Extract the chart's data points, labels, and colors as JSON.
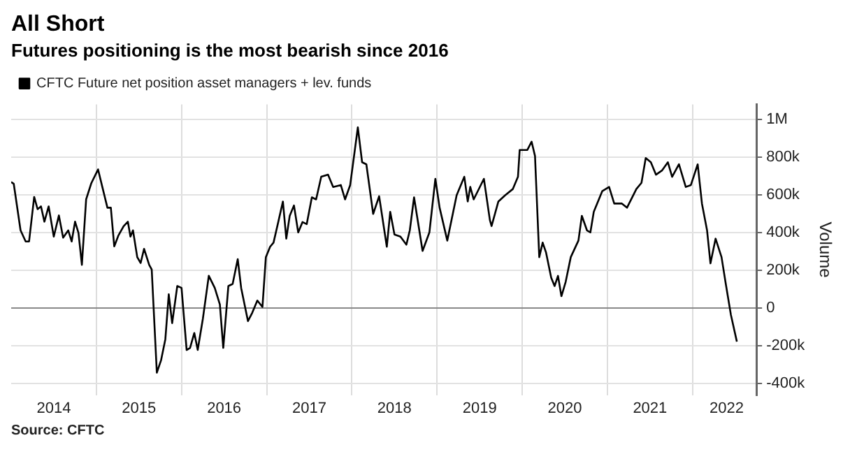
{
  "chart_data": {
    "type": "line",
    "title": "All Short",
    "subtitle": "Futures positioning is the most bearish since 2016",
    "ylabel": "Volume",
    "annotations": [
      "Source: CFTC"
    ],
    "series": [
      {
        "name": "CFTC Future net position asset managers + lev. funds",
        "color": "#000000",
        "x": [
          2014.0,
          2014.03,
          2014.11,
          2014.17,
          2014.21,
          2014.27,
          2014.31,
          2014.35,
          2014.39,
          2014.44,
          2014.5,
          2014.56,
          2014.61,
          2014.67,
          2014.71,
          2014.75,
          2014.79,
          2014.83,
          2014.88,
          2014.94,
          2015.02,
          2015.07,
          2015.13,
          2015.17,
          2015.21,
          2015.26,
          2015.32,
          2015.37,
          2015.4,
          2015.43,
          2015.48,
          2015.52,
          2015.56,
          2015.62,
          2015.65,
          2015.71,
          2015.76,
          2015.81,
          2015.85,
          2015.89,
          2015.95,
          2016.0,
          2016.06,
          2016.1,
          2016.15,
          2016.19,
          2016.25,
          2016.32,
          2016.39,
          2016.45,
          2016.49,
          2016.55,
          2016.6,
          2016.66,
          2016.7,
          2016.78,
          2016.83,
          2016.89,
          2016.95,
          2016.99,
          2017.04,
          2017.08,
          2017.13,
          2017.19,
          2017.23,
          2017.27,
          2017.32,
          2017.37,
          2017.42,
          2017.47,
          2017.53,
          2017.58,
          2017.64,
          2017.72,
          2017.78,
          2017.87,
          2017.92,
          2017.98,
          2018.07,
          2018.12,
          2018.17,
          2018.25,
          2018.32,
          2018.41,
          2018.45,
          2018.5,
          2018.57,
          2018.64,
          2018.68,
          2018.73,
          2018.83,
          2018.91,
          2018.98,
          2019.03,
          2019.12,
          2019.23,
          2019.32,
          2019.36,
          2019.39,
          2019.43,
          2019.55,
          2019.62,
          2019.64,
          2019.72,
          2019.8,
          2019.89,
          2019.95,
          2019.97,
          2020.06,
          2020.11,
          2020.15,
          2020.2,
          2020.24,
          2020.28,
          2020.34,
          2020.38,
          2020.42,
          2020.46,
          2020.51,
          2020.57,
          2020.66,
          2020.7,
          2020.76,
          2020.8,
          2020.84,
          2020.94,
          2021.02,
          2021.08,
          2021.17,
          2021.23,
          2021.34,
          2021.4,
          2021.45,
          2021.51,
          2021.57,
          2021.64,
          2021.71,
          2021.76,
          2021.84,
          2021.92,
          2021.98,
          2022.06,
          2022.11,
          2022.17,
          2022.21,
          2022.27,
          2022.34,
          2022.39,
          2022.45,
          2022.52
        ],
        "values": [
          669000,
          660000,
          413000,
          354000,
          354000,
          590000,
          525000,
          540000,
          459000,
          540000,
          380000,
          492000,
          374000,
          413000,
          354000,
          459000,
          400000,
          230000,
          577000,
          662000,
          736000,
          643000,
          533000,
          533000,
          328000,
          387000,
          435000,
          459000,
          380000,
          413000,
          271000,
          240000,
          315000,
          230000,
          205000,
          -341000,
          -275000,
          -164000,
          74000,
          -79000,
          118000,
          108000,
          -221000,
          -210000,
          -131000,
          -221000,
          -57000,
          172000,
          108000,
          20000,
          -210000,
          118000,
          129000,
          260000,
          108000,
          -68000,
          -24000,
          41000,
          7000,
          271000,
          326000,
          348000,
          446000,
          566000,
          369000,
          490000,
          545000,
          402000,
          457000,
          446000,
          588000,
          577000,
          697000,
          708000,
          643000,
          653000,
          577000,
          653000,
          959000,
          774000,
          763000,
          500000,
          594000,
          326000,
          511000,
          391000,
          380000,
          337000,
          413000,
          588000,
          304000,
          402000,
          686000,
          533000,
          359000,
          599000,
          697000,
          566000,
          643000,
          577000,
          686000,
          468000,
          436000,
          566000,
          599000,
          632000,
          697000,
          839000,
          839000,
          883000,
          807000,
          271000,
          348000,
          295000,
          162000,
          118000,
          172000,
          64000,
          140000,
          271000,
          359000,
          490000,
          413000,
          402000,
          511000,
          621000,
          643000,
          555000,
          555000,
          533000,
          632000,
          665000,
          796000,
          774000,
          708000,
          730000,
          774000,
          697000,
          763000,
          643000,
          653000,
          763000,
          555000,
          413000,
          238000,
          369000,
          271000,
          129000,
          -35000,
          -177000
        ]
      }
    ],
    "xlim": [
      2014.0,
      2022.75
    ],
    "xticks": [
      {
        "value": 2014.5,
        "label": "2014"
      },
      {
        "value": 2015,
        "label": null
      },
      {
        "value": 2015.5,
        "label": "2015"
      },
      {
        "value": 2016,
        "label": null
      },
      {
        "value": 2016.5,
        "label": "2016"
      },
      {
        "value": 2017,
        "label": null
      },
      {
        "value": 2017.5,
        "label": "2017"
      },
      {
        "value": 2018,
        "label": null
      },
      {
        "value": 2018.5,
        "label": "2018"
      },
      {
        "value": 2019,
        "label": null
      },
      {
        "value": 2019.5,
        "label": "2019"
      },
      {
        "value": 2020,
        "label": null
      },
      {
        "value": 2020.5,
        "label": "2020"
      },
      {
        "value": 2021,
        "label": null
      },
      {
        "value": 2021.5,
        "label": "2021"
      },
      {
        "value": 2022,
        "label": null
      },
      {
        "value": 2022.4,
        "label": "2022"
      }
    ],
    "ylim": [
      -460000,
      1080000
    ],
    "yticks": [
      {
        "value": -400000,
        "label": "-400k"
      },
      {
        "value": -200000,
        "label": "-200k"
      },
      0,
      {
        "value": 200000,
        "label": "200k"
      },
      {
        "value": 400000,
        "label": "400k"
      },
      {
        "value": 600000,
        "label": "600k"
      },
      {
        "value": 800000,
        "label": "800k"
      },
      {
        "value": 1000000,
        "label": "1M"
      }
    ],
    "grid": true,
    "legend": "top left",
    "marker": "none",
    "line_style": "solid"
  }
}
